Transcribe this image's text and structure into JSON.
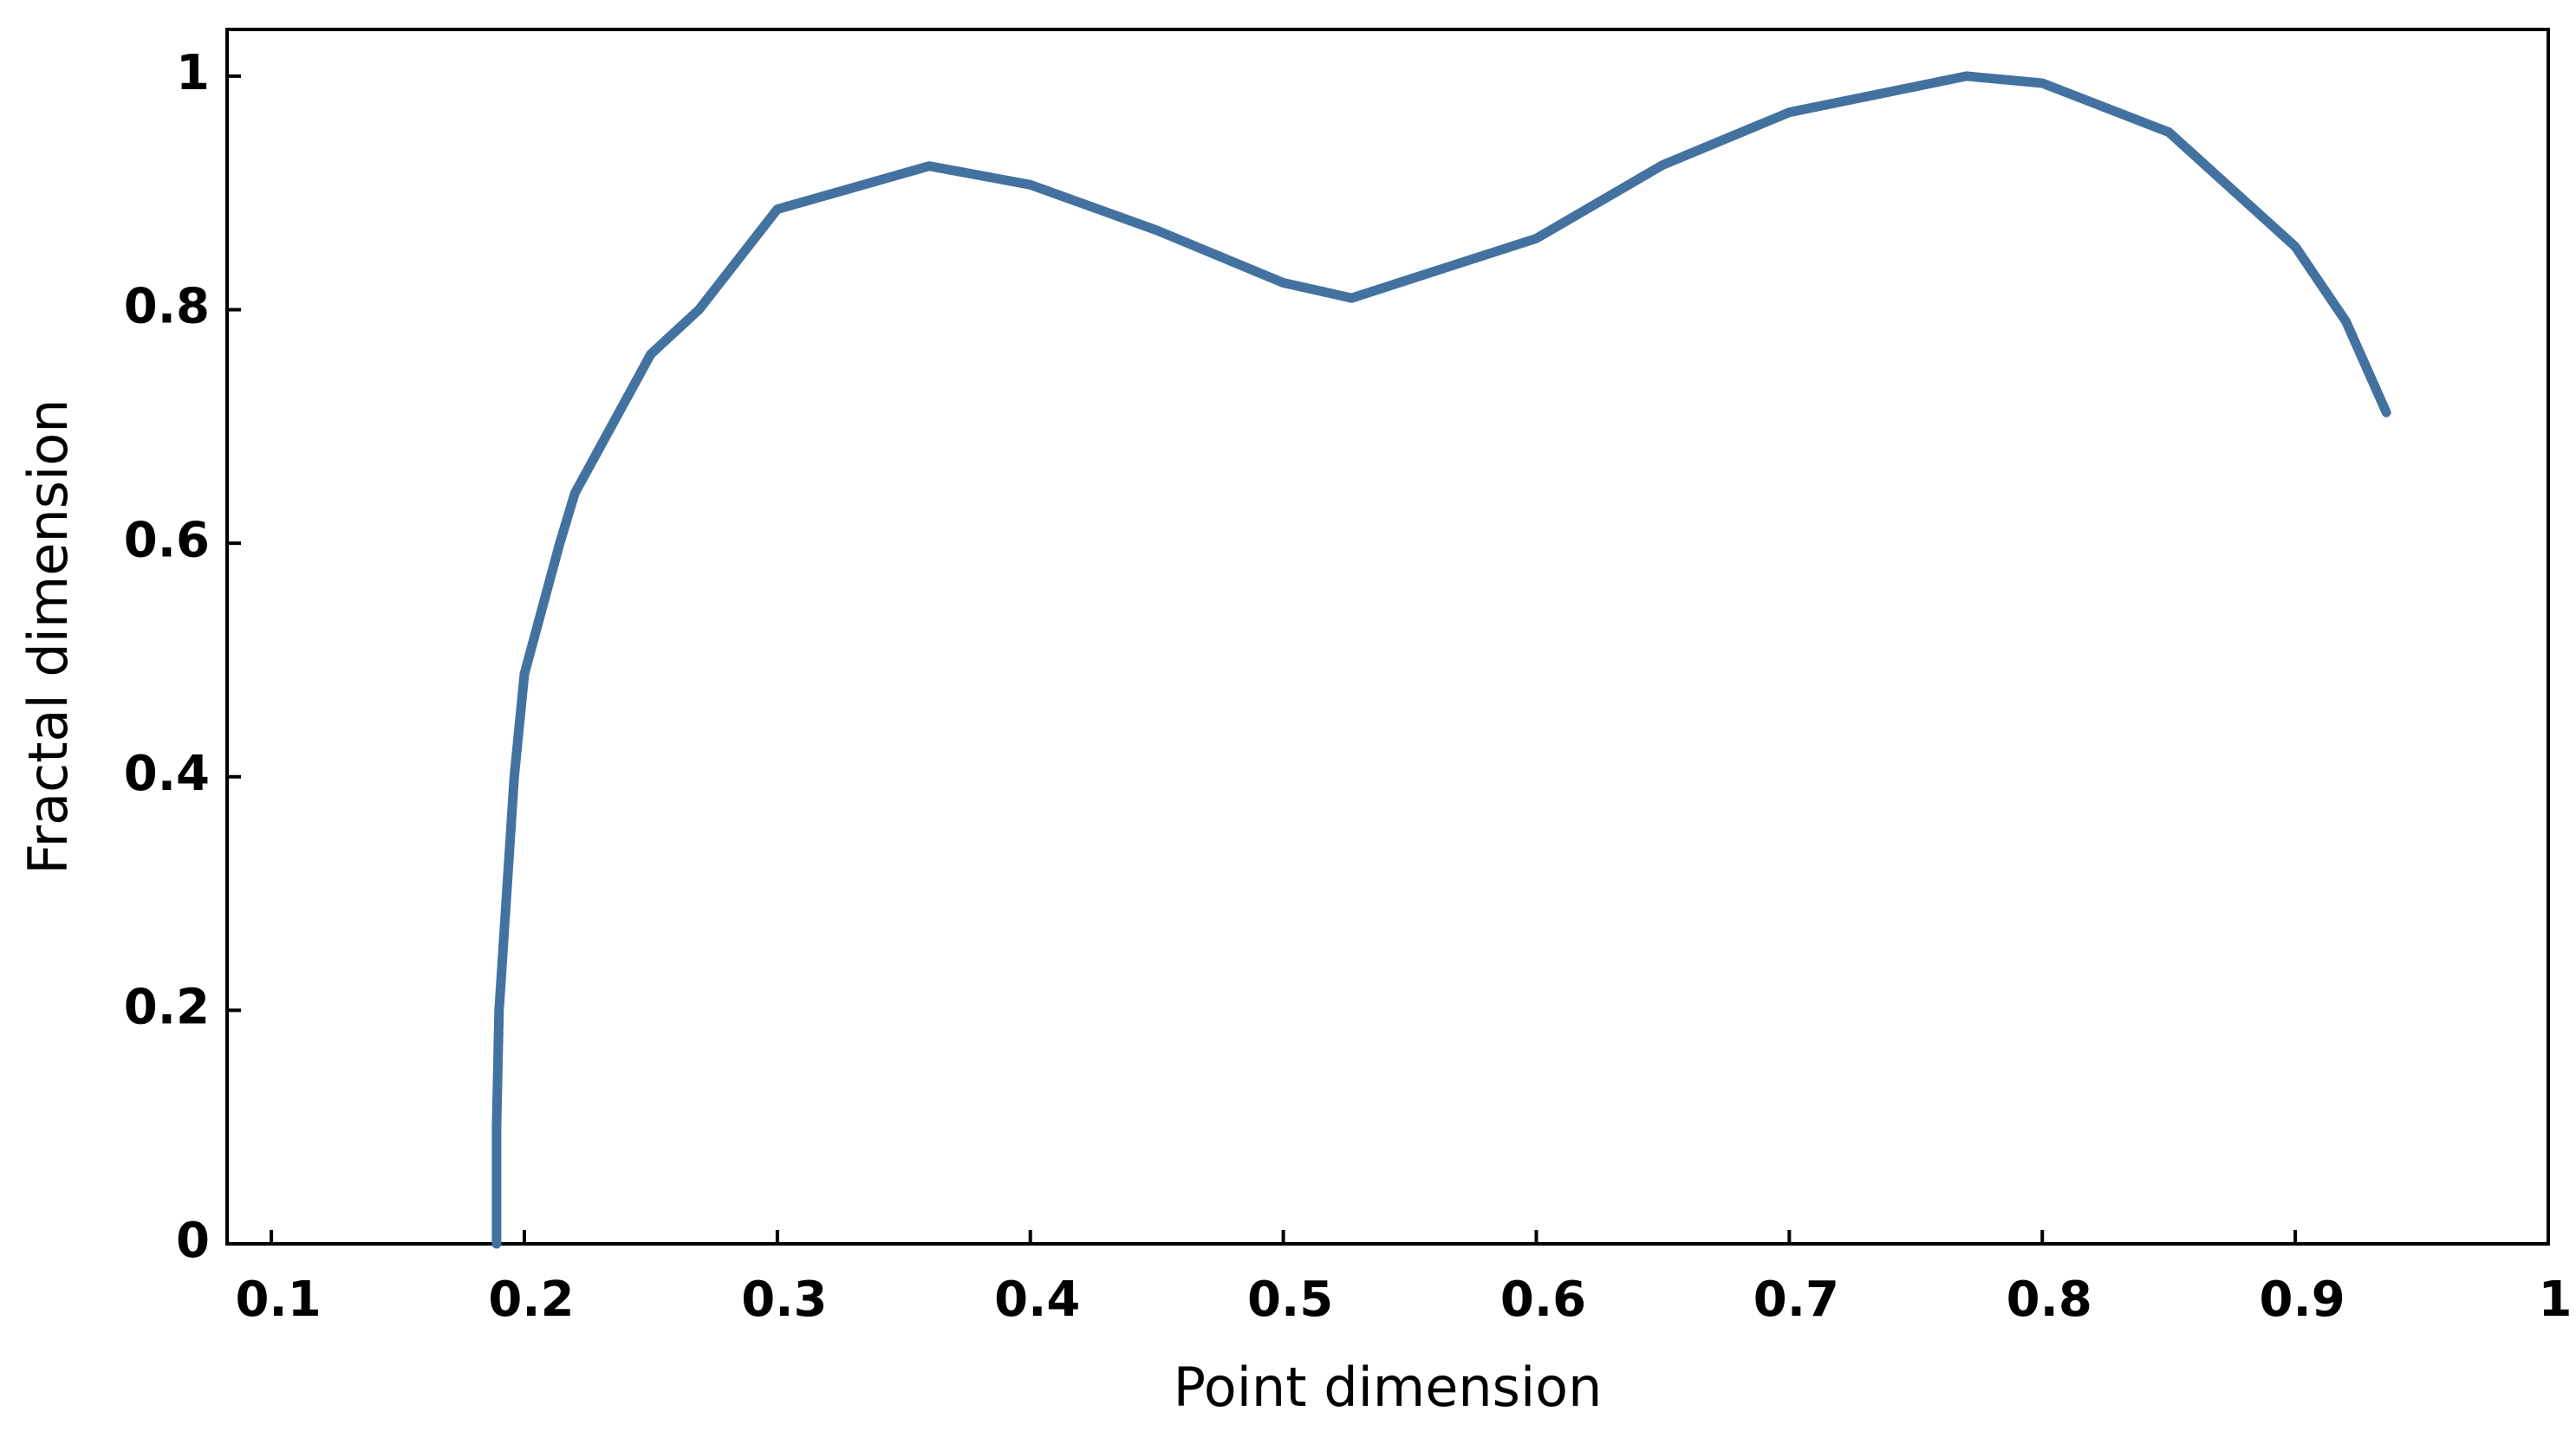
{
  "chart_data": {
    "type": "line",
    "xlabel": "Point dimension",
    "ylabel": "Fractal dimension",
    "series": [
      {
        "name": "Fractal dimension",
        "color": "#4472a0",
        "x": [
          0.189,
          0.189,
          0.19,
          0.196,
          0.2,
          0.214,
          0.22,
          0.25,
          0.269,
          0.3,
          0.36,
          0.4,
          0.45,
          0.5,
          0.527,
          0.6,
          0.65,
          0.7,
          0.77,
          0.8,
          0.85,
          0.9,
          0.92,
          0.936
        ],
        "values": [
          0,
          0.1,
          0.2,
          0.4,
          0.488,
          0.6,
          0.643,
          0.762,
          0.8,
          0.886,
          0.923,
          0.907,
          0.868,
          0.823,
          0.81,
          0.861,
          0.924,
          0.969,
          1.0,
          0.994,
          0.952,
          0.854,
          0.79,
          0.712
        ]
      }
    ],
    "xlim": [
      0.0825,
      1.0
    ],
    "xticks": [
      0.1,
      0.2,
      0.3,
      0.4,
      0.5,
      0.6,
      0.7,
      0.8,
      0.9,
      1
    ],
    "ylim": [
      0,
      1.04
    ],
    "yticks": [
      0,
      0.2,
      0.4,
      0.6,
      0.8,
      1
    ],
    "grid": false
  }
}
